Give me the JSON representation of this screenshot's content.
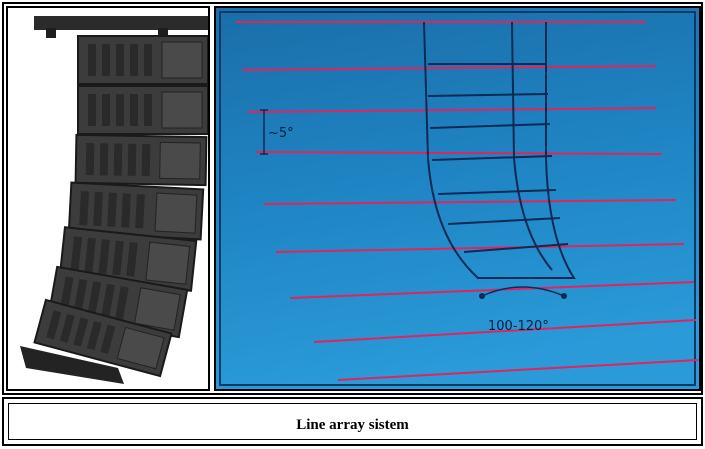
{
  "figure": {
    "caption": "Line array sistem",
    "colors": {
      "background_blue_top": "#1a6ea8",
      "background_blue_bottom": "#2a9ad8",
      "ray_color": "#e0245e",
      "cabinet_outline": "#0e2a55",
      "speaker_body": "#3a3a3a"
    },
    "left_image": {
      "description_icon": "line-array-speaker-stack-photo"
    },
    "right_diagram": {
      "angle_label_top": "~5°",
      "angle_label_bottom": "100-120°"
    }
  }
}
